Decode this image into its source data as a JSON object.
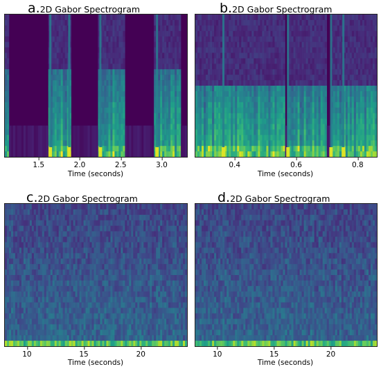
{
  "chart_data": [
    {
      "type": "heatmap",
      "panel_letter": "a.",
      "title": "2D Gabor Spectrogram",
      "xlabel": "Time (seconds)",
      "xlim": [
        1.08,
        3.3
      ],
      "xticks": [
        1.5,
        2.0,
        2.5,
        3.0
      ],
      "xtick_labels": [
        "1.5",
        "2.0",
        "2.5",
        "3.0"
      ],
      "colormap": "viridis",
      "energy_bursts_seconds": [
        [
          1.08,
          1.12
        ],
        [
          1.6,
          1.88
        ],
        [
          2.22,
          2.55
        ],
        [
          2.9,
          3.22
        ]
      ],
      "bright_lines_seconds": [
        1.63,
        1.86,
        2.24,
        2.93
      ]
    },
    {
      "type": "heatmap",
      "panel_letter": "b.",
      "title": "2D Gabor Spectrogram",
      "xlabel": "Time (seconds)",
      "xlim": [
        0.27,
        0.86
      ],
      "xticks": [
        0.4,
        0.6,
        0.8
      ],
      "xtick_labels": [
        "0.4",
        "0.6",
        "0.8"
      ],
      "colormap": "viridis",
      "energy_bursts_seconds": [
        [
          0.27,
          0.34
        ],
        [
          0.34,
          0.56
        ],
        [
          0.57,
          0.7
        ],
        [
          0.71,
          0.86
        ]
      ],
      "bright_lines_seconds": [
        0.36,
        0.57,
        0.71,
        0.75
      ]
    },
    {
      "type": "heatmap",
      "panel_letter": "c.",
      "title": "2D Gabor Spectrogram",
      "xlabel": "Time (seconds)",
      "xlim": [
        8,
        24
      ],
      "xticks": [
        10,
        15,
        20
      ],
      "xtick_labels": [
        "10",
        "15",
        "20"
      ],
      "colormap": "viridis",
      "energy_bursts_seconds": [
        [
          8,
          24
        ]
      ],
      "bright_lines_seconds": []
    },
    {
      "type": "heatmap",
      "panel_letter": "d.",
      "title": "2D Gabor Spectrogram",
      "xlabel": "Time (seconds)",
      "xlim": [
        8,
        24
      ],
      "xticks": [
        10,
        15,
        20
      ],
      "xtick_labels": [
        "10",
        "15",
        "20"
      ],
      "colormap": "viridis",
      "energy_bursts_seconds": [
        [
          8,
          24
        ]
      ],
      "bright_lines_seconds": []
    }
  ]
}
